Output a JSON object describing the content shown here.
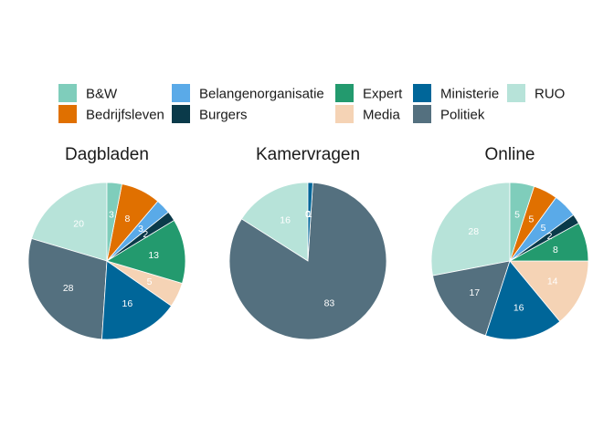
{
  "chart_data": {
    "type": "pie",
    "categories": [
      "B&W",
      "Bedrijfsleven",
      "Belangenorganisatie",
      "Burgers",
      "Expert",
      "Media",
      "Ministerie",
      "Politiek",
      "RUO"
    ],
    "colors": [
      "#7fcdbb",
      "#e07000",
      "#5aaae8",
      "#0a3a4a",
      "#239a6e",
      "#f5d3b5",
      "#006699",
      "#54707f",
      "#b7e3d9"
    ],
    "legend_position": "top",
    "panels": [
      {
        "title": "Dagbladen",
        "values": [
          3,
          8,
          3,
          2,
          13,
          5,
          16,
          28,
          20
        ]
      },
      {
        "title": "Kamervragen",
        "values": [
          0,
          0,
          0,
          0,
          0,
          0,
          1,
          83,
          16
        ]
      },
      {
        "title": "Online",
        "values": [
          5,
          5,
          5,
          2,
          8,
          14,
          16,
          17,
          28
        ]
      }
    ]
  }
}
